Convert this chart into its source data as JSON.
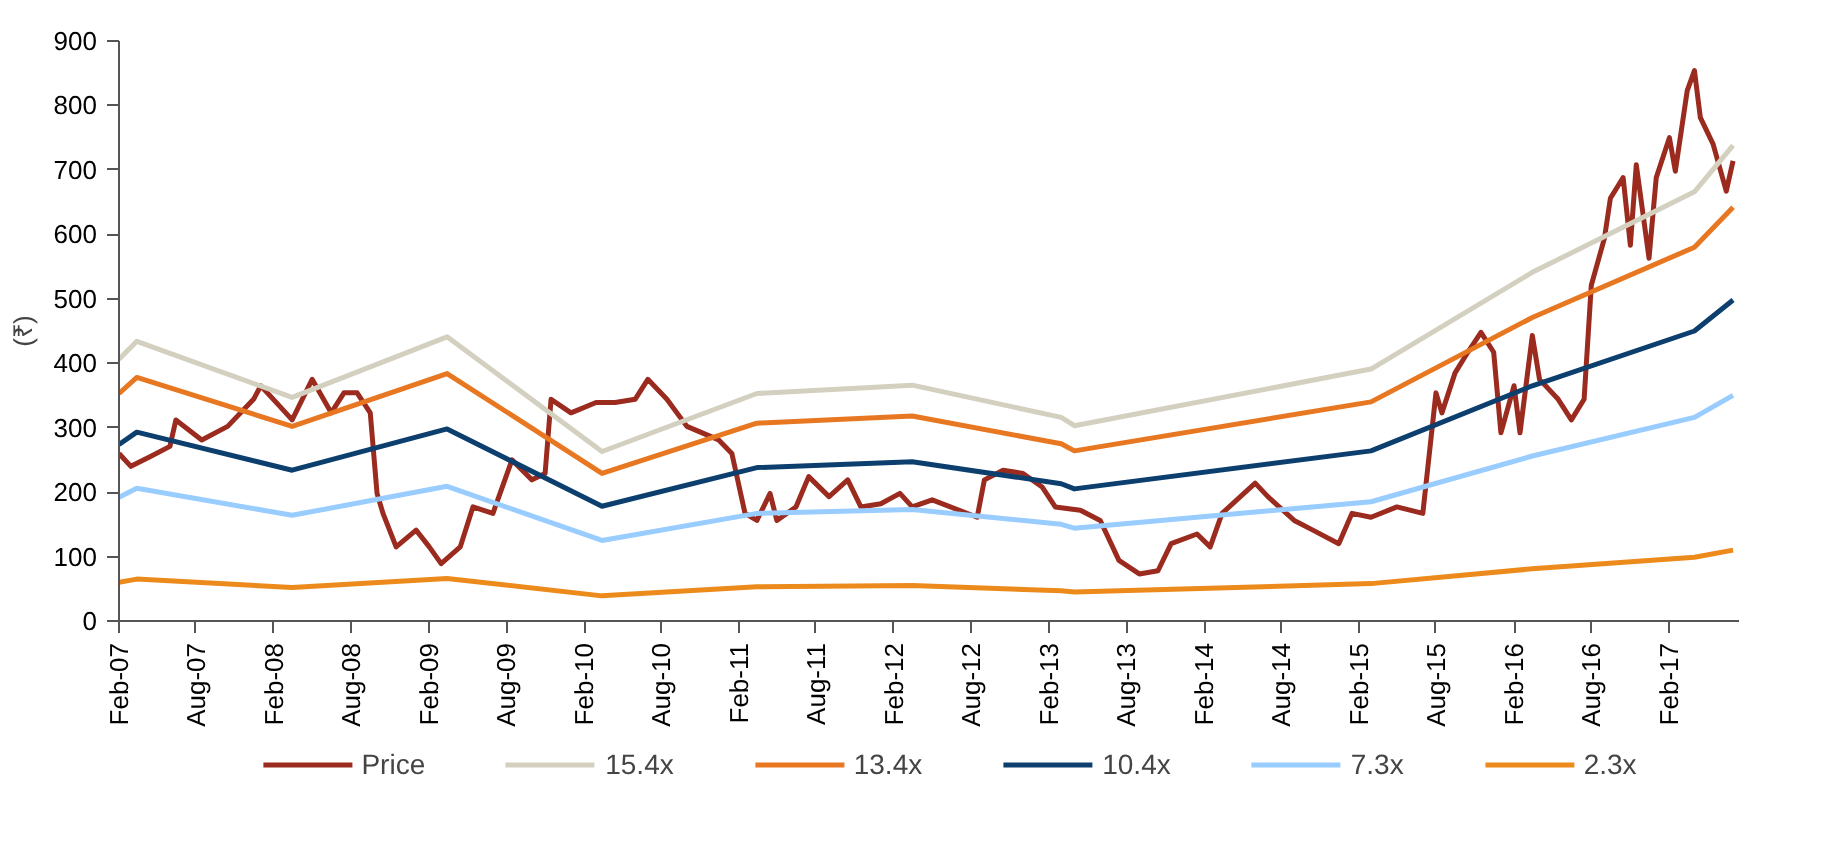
{
  "chart_data": {
    "type": "line",
    "ylabel": "(₹)",
    "legend": "bottom",
    "grid": false,
    "marker": "none",
    "line_style": "solid",
    "xlim": [
      "2007-02-01",
      "2017-07-15"
    ],
    "xticks": [
      {
        "value": "2007-02-01",
        "label": "Feb-07"
      },
      {
        "value": "2007-08-01",
        "label": "Aug-07"
      },
      {
        "value": "2008-02-01",
        "label": "Feb-08"
      },
      {
        "value": "2008-08-01",
        "label": "Aug-08"
      },
      {
        "value": "2009-02-01",
        "label": "Feb-09"
      },
      {
        "value": "2009-08-01",
        "label": "Aug-09"
      },
      {
        "value": "2010-02-01",
        "label": "Feb-10"
      },
      {
        "value": "2010-08-01",
        "label": "Aug-10"
      },
      {
        "value": "2011-02-01",
        "label": "Feb-11"
      },
      {
        "value": "2011-08-01",
        "label": "Aug-11"
      },
      {
        "value": "2012-02-01",
        "label": "Feb-12"
      },
      {
        "value": "2012-08-01",
        "label": "Aug-12"
      },
      {
        "value": "2013-02-01",
        "label": "Feb-13"
      },
      {
        "value": "2013-08-01",
        "label": "Aug-13"
      },
      {
        "value": "2014-02-01",
        "label": "Feb-14"
      },
      {
        "value": "2014-08-01",
        "label": "Aug-14"
      },
      {
        "value": "2015-02-01",
        "label": "Feb-15"
      },
      {
        "value": "2015-08-01",
        "label": "Aug-15"
      },
      {
        "value": "2016-02-01",
        "label": "Feb-16"
      },
      {
        "value": "2016-08-01",
        "label": "Aug-16"
      },
      {
        "value": "2017-02-01",
        "label": "Feb-17"
      }
    ],
    "ylim": [
      0,
      900
    ],
    "yticks": [
      0,
      100,
      200,
      300,
      400,
      500,
      600,
      700,
      800,
      900
    ],
    "series": [
      {
        "name": "Price",
        "color": "#9b2a1f",
        "x": [
          "2007-02-01",
          "2007-03-01",
          "2007-04-15",
          "2007-06-01",
          "2007-06-15",
          "2007-08-15",
          "2007-10-15",
          "2007-12-15",
          "2008-01-01",
          "2008-02-15",
          "2008-03-15",
          "2008-05-01",
          "2008-06-15",
          "2008-07-15",
          "2008-08-15",
          "2008-09-15",
          "2008-10-01",
          "2008-10-15",
          "2008-11-15",
          "2009-01-01",
          "2009-02-01",
          "2009-03-01",
          "2009-04-15",
          "2009-05-15",
          "2009-07-01",
          "2009-08-15",
          "2009-10-01",
          "2009-11-01",
          "2009-11-15",
          "2010-01-01",
          "2010-03-01",
          "2010-04-15",
          "2010-06-01",
          "2010-07-01",
          "2010-08-15",
          "2010-10-01",
          "2010-12-15",
          "2011-01-15",
          "2011-02-15",
          "2011-03-15",
          "2011-04-15",
          "2011-05-01",
          "2011-06-15",
          "2011-07-15",
          "2011-09-01",
          "2011-10-15",
          "2011-11-15",
          "2012-01-01",
          "2012-02-15",
          "2012-03-15",
          "2012-05-01",
          "2012-08-15",
          "2012-09-01",
          "2012-10-15",
          "2012-12-01",
          "2013-01-15",
          "2013-02-15",
          "2013-04-15",
          "2013-06-01",
          "2013-07-15",
          "2013-09-01",
          "2013-10-15",
          "2013-11-15",
          "2014-01-15",
          "2014-02-15",
          "2014-03-15",
          "2014-06-01",
          "2014-07-01",
          "2014-09-01",
          "2014-10-15",
          "2014-12-15",
          "2015-01-15",
          "2015-03-01",
          "2015-05-01",
          "2015-07-01",
          "2015-08-01",
          "2015-08-15",
          "2015-09-15",
          "2015-10-15",
          "2015-11-15",
          "2015-12-15",
          "2016-01-01",
          "2016-02-01",
          "2016-02-15",
          "2016-03-15",
          "2016-04-01",
          "2016-05-15",
          "2016-06-15",
          "2016-07-15",
          "2016-08-01",
          "2016-09-01",
          "2016-09-15",
          "2016-10-15",
          "2016-11-01",
          "2016-11-15",
          "2016-12-15",
          "2017-01-01",
          "2017-02-01",
          "2017-02-15",
          "2017-03-15",
          "2017-04-01",
          "2017-04-15",
          "2017-05-15",
          "2017-06-15",
          "2017-07-01"
        ],
        "values": [
          260,
          240,
          255,
          271,
          312,
          281,
          302,
          344,
          365,
          333,
          312,
          375,
          323,
          354,
          354,
          323,
          198,
          167,
          115,
          141,
          115,
          89,
          115,
          177,
          167,
          250,
          219,
          229,
          344,
          323,
          339,
          339,
          344,
          375,
          344,
          302,
          281,
          260,
          167,
          156,
          198,
          156,
          177,
          224,
          193,
          219,
          177,
          182,
          198,
          177,
          188,
          161,
          219,
          234,
          229,
          208,
          177,
          172,
          156,
          94,
          73,
          78,
          120,
          135,
          115,
          167,
          214,
          193,
          156,
          141,
          120,
          167,
          161,
          177,
          167,
          354,
          323,
          385,
          417,
          448,
          417,
          292,
          365,
          292,
          443,
          375,
          344,
          312,
          344,
          521,
          594,
          656,
          688,
          583,
          708,
          563,
          688,
          750,
          698,
          823,
          854,
          781,
          740,
          667,
          714
        ]
      },
      {
        "name": "15.4x",
        "color": "#d4d0c0",
        "x": [
          "2007-02-01",
          "2007-03-15",
          "2008-03-15",
          "2009-03-15",
          "2010-03-15",
          "2011-03-15",
          "2012-03-15",
          "2013-03-01",
          "2013-04-01",
          "2015-03-01",
          "2016-03-15",
          "2017-04-01",
          "2017-07-01"
        ],
        "values": [
          406,
          434,
          347,
          441,
          263,
          353,
          366,
          316,
          303,
          391,
          541,
          666,
          738
        ]
      },
      {
        "name": "13.4x",
        "color": "#e87722",
        "x": [
          "2007-02-01",
          "2007-03-15",
          "2008-03-15",
          "2009-03-15",
          "2010-03-15",
          "2011-03-15",
          "2012-03-15",
          "2013-03-01",
          "2013-04-01",
          "2015-03-01",
          "2016-03-15",
          "2017-04-01",
          "2017-07-01"
        ],
        "values": [
          353,
          378,
          302,
          384,
          229,
          307,
          318,
          275,
          264,
          340,
          471,
          580,
          642
        ]
      },
      {
        "name": "10.4x",
        "color": "#0d3f6e",
        "x": [
          "2007-02-01",
          "2007-03-15",
          "2008-03-15",
          "2009-03-15",
          "2010-03-15",
          "2011-03-15",
          "2012-03-15",
          "2013-03-01",
          "2013-04-01",
          "2015-03-01",
          "2016-03-15",
          "2017-04-01",
          "2017-07-01"
        ],
        "values": [
          274,
          293,
          234,
          298,
          178,
          238,
          247,
          213,
          205,
          264,
          365,
          450,
          498
        ]
      },
      {
        "name": "7.3x",
        "color": "#99ccff",
        "x": [
          "2007-02-01",
          "2007-03-15",
          "2008-03-15",
          "2009-03-15",
          "2010-03-15",
          "2011-03-15",
          "2012-03-15",
          "2013-03-01",
          "2013-04-01",
          "2015-03-01",
          "2016-03-15",
          "2017-04-01",
          "2017-07-01"
        ],
        "values": [
          192,
          206,
          164,
          209,
          125,
          167,
          173,
          150,
          144,
          185,
          256,
          316,
          350
        ]
      },
      {
        "name": "2.3x",
        "color": "#ec8a1c",
        "x": [
          "2007-02-01",
          "2007-03-15",
          "2008-03-15",
          "2009-03-15",
          "2010-03-15",
          "2011-03-15",
          "2012-03-15",
          "2013-03-01",
          "2013-04-01",
          "2015-03-01",
          "2016-03-15",
          "2017-04-01",
          "2017-07-01"
        ],
        "values": [
          60,
          65,
          52,
          66,
          39,
          53,
          55,
          47,
          45,
          58,
          81,
          99,
          110
        ]
      }
    ]
  }
}
